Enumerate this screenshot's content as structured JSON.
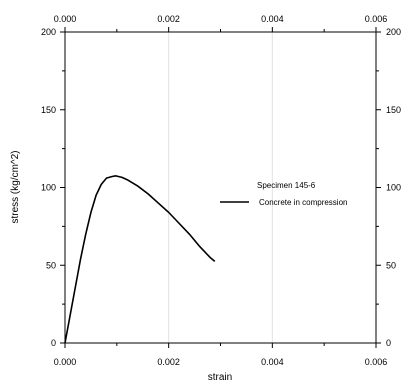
{
  "chart_data": {
    "type": "line",
    "xlabel": "strain",
    "ylabel": "stress (kg/cm^2)",
    "xlim": [
      0,
      0.006
    ],
    "ylim": [
      0,
      200
    ],
    "x_ticks": [
      "0.000",
      "0.002",
      "0.004",
      "0.006"
    ],
    "y_ticks": [
      "0",
      "50",
      "100",
      "150",
      "200"
    ],
    "x_minor_step": 0.001,
    "y_minor_step": 25,
    "grid": "vertical at major x ticks",
    "mirror_axes": true,
    "legend": {
      "placement": "right-middle",
      "title": "Specimen 145-6"
    },
    "colors": {
      "series": "#000000",
      "grid": "#e2e2e2",
      "axes": "#000000"
    },
    "series": [
      {
        "name": "Concrete in compression",
        "points": [
          [
            0.0,
            0
          ],
          [
            0.0001,
            18
          ],
          [
            0.0002,
            36
          ],
          [
            0.0003,
            54
          ],
          [
            0.0004,
            70
          ],
          [
            0.0005,
            84
          ],
          [
            0.0006,
            95
          ],
          [
            0.0007,
            102
          ],
          [
            0.0008,
            106
          ],
          [
            0.0009,
            107
          ],
          [
            0.00098,
            107.5
          ],
          [
            0.0011,
            106.5
          ],
          [
            0.0012,
            105
          ],
          [
            0.0014,
            101
          ],
          [
            0.0016,
            96
          ],
          [
            0.0018,
            90
          ],
          [
            0.002,
            84
          ],
          [
            0.0022,
            77
          ],
          [
            0.0024,
            70
          ],
          [
            0.0026,
            62
          ],
          [
            0.0028,
            55
          ],
          [
            0.00289,
            52.5
          ]
        ]
      }
    ]
  }
}
